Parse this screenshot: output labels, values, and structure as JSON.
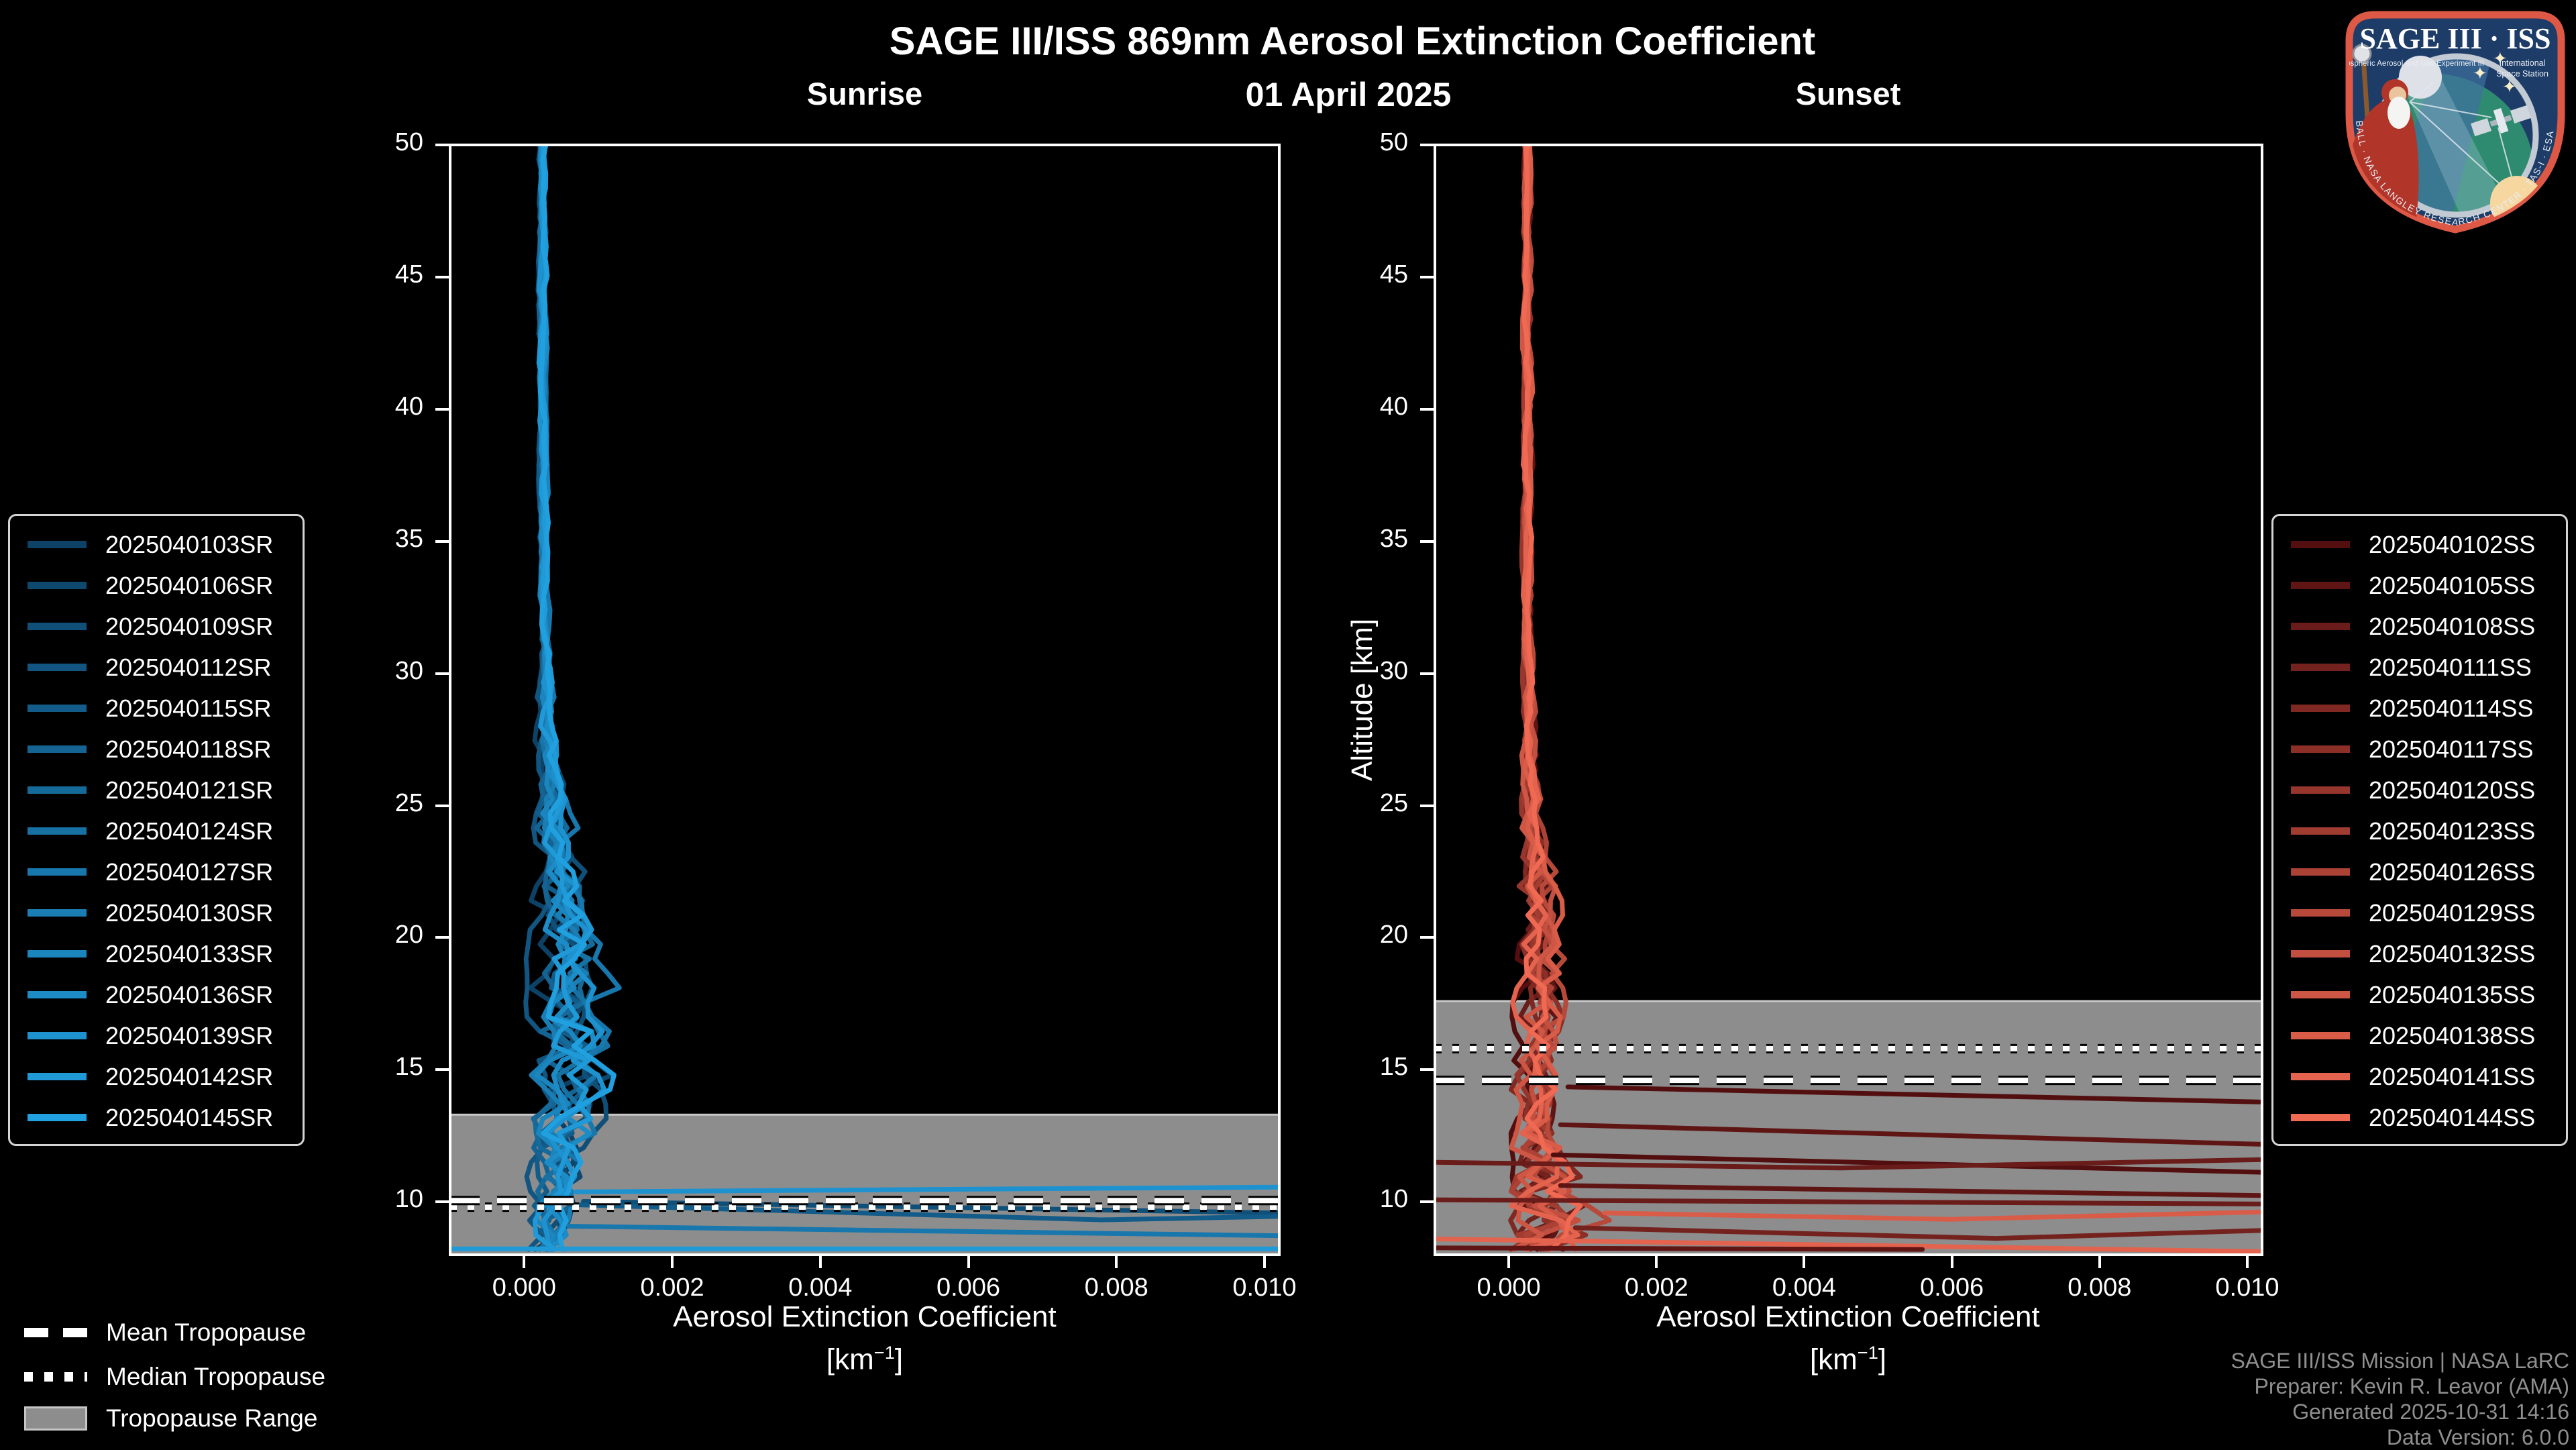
{
  "header": {
    "title": "SAGE III/ISS 869nm Aerosol Extinction Coefficient",
    "date": "01 April 2025",
    "left_panel_title": "Sunrise",
    "right_panel_title": "Sunset"
  },
  "axes": {
    "ylabel": "Altitude [km]",
    "xlabel_line1": "Aerosol Extinction Coefficient",
    "xlabel_unit_open": "[km",
    "xlabel_unit_exp": "−1",
    "xlabel_unit_close": "]"
  },
  "tropopause_legend": {
    "mean": "Mean Tropopause",
    "median": "Median Tropopause",
    "range": "Tropopause Range"
  },
  "attribution": {
    "line1": "SAGE III/ISS Mission | NASA LaRC",
    "line2": "Preparer: Kevin R. Leavor (AMA)",
    "line3": "Generated 2025-10-31 14:16",
    "line4": "Data Version: 6.0.0"
  },
  "logo": {
    "title_left": "SAGE III",
    "title_dot": "·",
    "title_right": "ISS",
    "sub_left": "Stratospheric Aerosol and Gas Experiment III",
    "sub_right1": "International",
    "sub_right2": "Space Station",
    "ring_text": "BALL · NASA LANGLEY RESEARCH CENTER · TAS-I · ESA"
  },
  "colors": {
    "background": "#000000",
    "text": "#ffffff",
    "attribution_text": "#8f8f8f",
    "tropopause_band": "#8d8d8d",
    "tropopause_band_edge": "#c8c8c8",
    "spine": "#ffffff",
    "logo_border": "#dd5946",
    "logo_field": "#1d3c68"
  },
  "chart_data": [
    {
      "type": "line",
      "title": "Sunrise",
      "event_type": "SR",
      "xlabel": "Aerosol Extinction Coefficient [km⁻¹]",
      "ylabel": "Altitude [km]",
      "xlim": [
        -0.001,
        0.0102
      ],
      "ylim": [
        8,
        50
      ],
      "xticks": [
        0.0,
        0.002,
        0.004,
        0.006,
        0.008,
        0.01
      ],
      "xtick_labels": [
        "0.000",
        "0.002",
        "0.004",
        "0.006",
        "0.008",
        "0.010"
      ],
      "yticks": [
        10,
        15,
        20,
        25,
        30,
        35,
        40,
        45,
        50
      ],
      "ytick_labels": [
        "10",
        "15",
        "20",
        "25",
        "30",
        "35",
        "40",
        "45",
        "50"
      ],
      "legend_position": "left",
      "color_ramp": [
        "#0d4166",
        "#21a0e0"
      ],
      "series_names": [
        "2025040103SR",
        "2025040106SR",
        "2025040109SR",
        "2025040112SR",
        "2025040115SR",
        "2025040118SR",
        "2025040121SR",
        "2025040124SR",
        "2025040127SR",
        "2025040130SR",
        "2025040133SR",
        "2025040136SR",
        "2025040139SR",
        "2025040142SR",
        "2025040145SR"
      ],
      "tropopause": {
        "mean_km": 10.05,
        "median_km": 9.8,
        "range_km": [
          8,
          13.3
        ]
      },
      "profile_base": [
        [
          50,
          0.00025
        ],
        [
          35,
          0.00026
        ],
        [
          28,
          0.0003
        ],
        [
          26,
          0.00034
        ],
        [
          24,
          0.0004
        ],
        [
          22,
          0.0005
        ],
        [
          20,
          0.00058
        ],
        [
          18,
          0.00062
        ],
        [
          16,
          0.00066
        ],
        [
          15,
          0.00064
        ],
        [
          14,
          0.00058
        ],
        [
          13,
          0.00052
        ],
        [
          12,
          0.00046
        ],
        [
          11,
          0.00042
        ],
        [
          10,
          0.00042
        ],
        [
          9,
          0.00038
        ],
        [
          8,
          0.00032
        ]
      ],
      "profile_spread": [
        [
          50,
          3e-05
        ],
        [
          32,
          4e-05
        ],
        [
          28,
          7e-05
        ],
        [
          26,
          0.0001
        ],
        [
          24,
          0.00016
        ],
        [
          22,
          0.00022
        ],
        [
          20,
          0.00026
        ],
        [
          18,
          0.0003
        ],
        [
          16,
          0.00034
        ],
        [
          15,
          0.00034
        ],
        [
          14,
          0.0003
        ],
        [
          13,
          0.00028
        ],
        [
          12,
          0.00026
        ],
        [
          11,
          0.00022
        ],
        [
          10,
          0.00022
        ],
        [
          9,
          0.0002
        ],
        [
          8,
          0.00016
        ]
      ],
      "excursions": [
        {
          "color_index": 12,
          "points": [
            [
              0.0007,
              10.38
            ],
            [
              0.0102,
              10.56
            ]
          ]
        },
        {
          "color_index": 2,
          "points": [
            [
              0.0008,
              10.02
            ],
            [
              0.0102,
              9.58
            ]
          ]
        },
        {
          "color_index": 4,
          "points": [
            [
              0.0006,
              9.9
            ],
            [
              0.0078,
              9.32
            ],
            [
              0.0102,
              9.45
            ]
          ]
        },
        {
          "color_index": 8,
          "points": [
            [
              0.0006,
              9.08
            ],
            [
              0.0102,
              8.72
            ]
          ]
        },
        {
          "color_index": 13,
          "points": [
            [
              -0.001,
              8.22
            ],
            [
              0.0102,
              8.22
            ]
          ]
        }
      ]
    },
    {
      "type": "line",
      "title": "Sunset",
      "event_type": "SS",
      "xlabel": "Aerosol Extinction Coefficient [km⁻¹]",
      "ylabel": "Altitude [km]",
      "xlim": [
        -0.001,
        0.0102
      ],
      "ylim": [
        8,
        50
      ],
      "xticks": [
        0.0,
        0.002,
        0.004,
        0.006,
        0.008,
        0.01
      ],
      "xtick_labels": [
        "0.000",
        "0.002",
        "0.004",
        "0.006",
        "0.008",
        "0.010"
      ],
      "yticks": [
        10,
        15,
        20,
        25,
        30,
        35,
        40,
        45,
        50
      ],
      "ytick_labels": [
        "10",
        "15",
        "20",
        "25",
        "30",
        "35",
        "40",
        "45",
        "50"
      ],
      "legend_position": "right",
      "color_ramp": [
        "#530f0f",
        "#ef6953"
      ],
      "series_names": [
        "2025040102SS",
        "2025040105SS",
        "2025040108SS",
        "2025040111SS",
        "2025040114SS",
        "2025040117SS",
        "2025040120SS",
        "2025040123SS",
        "2025040126SS",
        "2025040129SS",
        "2025040132SS",
        "2025040135SS",
        "2025040138SS",
        "2025040141SS",
        "2025040144SS"
      ],
      "tropopause": {
        "mean_km": 14.6,
        "median_km": 15.8,
        "range_km": [
          8,
          17.6
        ]
      },
      "profile_base": [
        [
          50,
          0.00025
        ],
        [
          30,
          0.00026
        ],
        [
          26,
          0.0003
        ],
        [
          23,
          0.00038
        ],
        [
          21,
          0.00042
        ],
        [
          19,
          0.00042
        ],
        [
          17,
          0.0004
        ],
        [
          15,
          0.00036
        ],
        [
          13,
          0.0004
        ],
        [
          12,
          0.00045
        ],
        [
          11,
          0.0005
        ],
        [
          10,
          0.00055
        ],
        [
          9,
          0.0005
        ],
        [
          8,
          0.00045
        ]
      ],
      "profile_spread": [
        [
          50,
          3e-05
        ],
        [
          30,
          4e-05
        ],
        [
          26,
          7e-05
        ],
        [
          24,
          0.00012
        ],
        [
          22,
          0.00018
        ],
        [
          20,
          0.0002
        ],
        [
          18,
          0.0002
        ],
        [
          16,
          0.00018
        ],
        [
          14,
          0.0002
        ],
        [
          12,
          0.00028
        ],
        [
          11,
          0.00035
        ],
        [
          10,
          0.00045
        ],
        [
          9,
          0.0005
        ],
        [
          8,
          0.00045
        ]
      ],
      "excursions": [
        {
          "color_index": 0,
          "points": [
            [
              0.0008,
              14.35
            ],
            [
              0.0102,
              13.78
            ]
          ]
        },
        {
          "color_index": 1,
          "points": [
            [
              0.0007,
              12.92
            ],
            [
              0.0102,
              12.18
            ]
          ]
        },
        {
          "color_index": 0,
          "points": [
            [
              0.0006,
              11.78
            ],
            [
              0.0102,
              11.12
            ]
          ]
        },
        {
          "color_index": 2,
          "points": [
            [
              -0.001,
              11.5
            ],
            [
              0.0045,
              11.28
            ],
            [
              0.0102,
              11.6
            ]
          ]
        },
        {
          "color_index": 1,
          "points": [
            [
              0.0007,
              10.62
            ],
            [
              0.0102,
              10.24
            ]
          ]
        },
        {
          "color_index": 2,
          "points": [
            [
              -0.001,
              10.08
            ],
            [
              0.0102,
              9.92
            ]
          ]
        },
        {
          "color_index": 12,
          "points": [
            [
              0.0013,
              9.58
            ],
            [
              0.006,
              9.34
            ],
            [
              0.0102,
              9.62
            ]
          ]
        },
        {
          "color_index": 3,
          "points": [
            [
              0.0009,
              9.02
            ],
            [
              0.0066,
              8.62
            ],
            [
              0.0102,
              8.92
            ]
          ]
        },
        {
          "color_index": 13,
          "points": [
            [
              -0.001,
              8.6
            ],
            [
              0.0042,
              8.38
            ],
            [
              0.0102,
              8.12
            ]
          ]
        },
        {
          "color_index": 1,
          "points": [
            [
              -0.001,
              8.26
            ],
            [
              0.0056,
              8.2
            ]
          ]
        }
      ]
    }
  ]
}
